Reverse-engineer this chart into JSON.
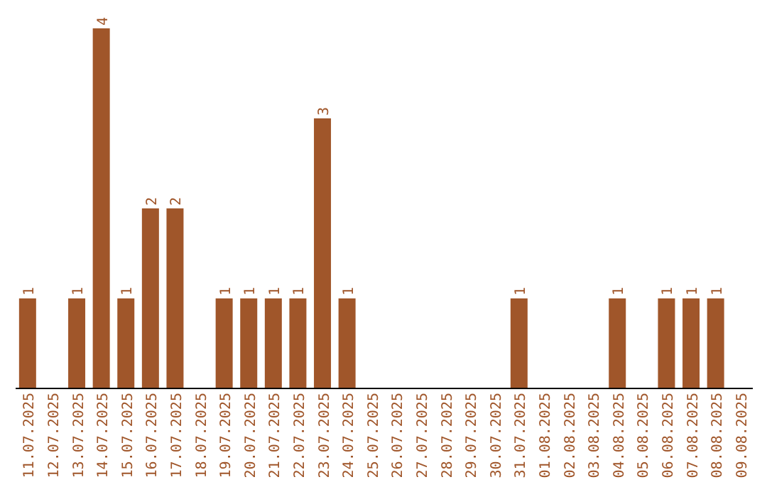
{
  "chart_data": {
    "type": "bar",
    "categories": [
      "11.07.2025",
      "12.07.2025",
      "13.07.2025",
      "14.07.2025",
      "15.07.2025",
      "16.07.2025",
      "17.07.2025",
      "18.07.2025",
      "19.07.2025",
      "20.07.2025",
      "21.07.2025",
      "22.07.2025",
      "23.07.2025",
      "24.07.2025",
      "25.07.2025",
      "26.07.2025",
      "27.07.2025",
      "28.07.2025",
      "29.07.2025",
      "30.07.2025",
      "31.07.2025",
      "01.08.2025",
      "02.08.2025",
      "03.08.2025",
      "04.08.2025",
      "05.08.2025",
      "06.08.2025",
      "07.08.2025",
      "08.08.2025",
      "09.08.2025"
    ],
    "values": [
      1,
      0,
      1,
      4,
      1,
      2,
      2,
      0,
      1,
      1,
      1,
      1,
      3,
      1,
      0,
      0,
      0,
      0,
      0,
      0,
      1,
      0,
      0,
      0,
      1,
      0,
      1,
      1,
      1,
      0
    ],
    "value_labels": [
      "1",
      null,
      "1",
      "4",
      "1",
      "2",
      "2",
      null,
      "1",
      "1",
      "1",
      "1",
      "3",
      "1",
      null,
      null,
      null,
      null,
      null,
      null,
      "1",
      null,
      null,
      null,
      "1",
      null,
      "1",
      "1",
      "1",
      null
    ],
    "color": "#a0562a",
    "tick_labels": "x",
    "grid": false,
    "legend": false
  }
}
